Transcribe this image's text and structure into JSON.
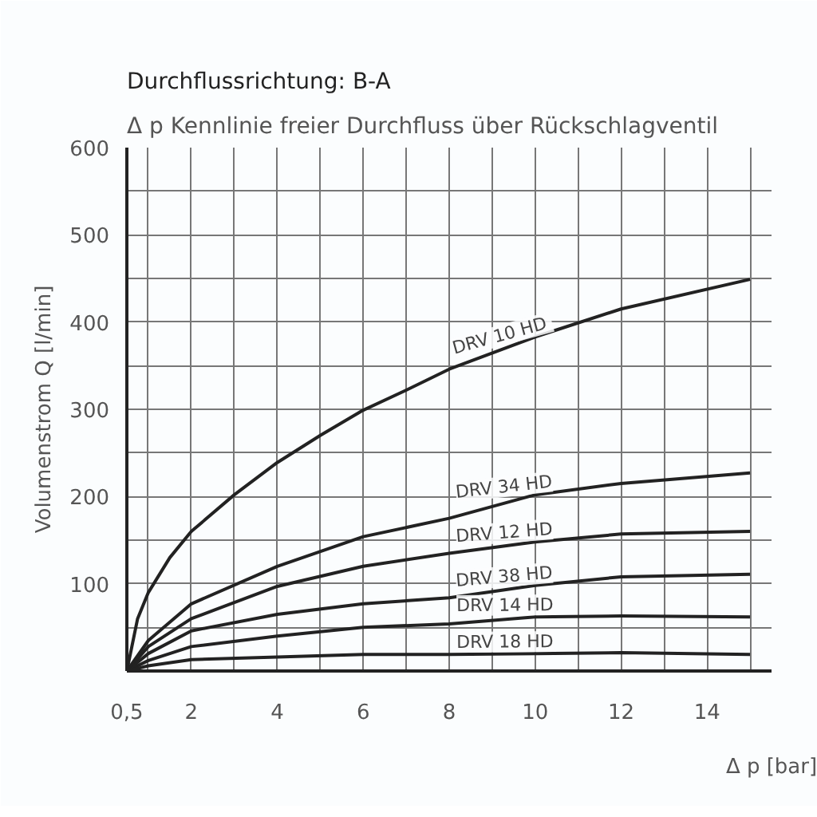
{
  "chart_data": {
    "type": "line",
    "title": "Durchflussrichtung: B-A",
    "subtitle": "Δ p Kennlinie freier Durchfluss über Rückschlagventil",
    "xlabel": "Δ p [bar]",
    "ylabel": "Volumenstrom Q [l/min]",
    "xlim": [
      0.5,
      15.5
    ],
    "ylim": [
      0,
      600
    ],
    "xticks": [
      {
        "value": 0.5,
        "label": "0,5"
      },
      {
        "value": 1,
        "label": null
      },
      2,
      {
        "value": 3,
        "label": null
      },
      4,
      {
        "value": 5,
        "label": null
      },
      6,
      {
        "value": 7,
        "label": null
      },
      8,
      {
        "value": 9,
        "label": null
      },
      10,
      {
        "value": 11,
        "label": null
      },
      12,
      {
        "value": 13,
        "label": null
      },
      14,
      {
        "value": 15,
        "label": null
      }
    ],
    "yticks": [
      {
        "value": 0,
        "label": null
      },
      {
        "value": 50,
        "label": null
      },
      100,
      {
        "value": 150,
        "label": null
      },
      200,
      {
        "value": 250,
        "label": null
      },
      300,
      {
        "value": 350,
        "label": null
      },
      400,
      {
        "value": 450,
        "label": null
      },
      500,
      {
        "value": 550,
        "label": null
      },
      600
    ],
    "grid": true,
    "legend": false,
    "marker": "none",
    "line_style": "solid",
    "series": [
      {
        "name": "DRV 10  HD",
        "color": "#222222",
        "x": [
          0.5,
          0.75,
          1,
          1.5,
          2,
          3,
          4,
          5,
          6,
          7,
          8,
          10,
          12,
          15
        ],
        "values": [
          0,
          60,
          90,
          130,
          160,
          202,
          239,
          270,
          299,
          322,
          346,
          383,
          415,
          449
        ]
      },
      {
        "name": "DRV 34 HD",
        "color": "#222222",
        "x": [
          0.5,
          1,
          2,
          4,
          6,
          8,
          10,
          12,
          15
        ],
        "values": [
          0,
          35,
          77,
          120,
          154,
          175,
          202,
          215,
          227
        ]
      },
      {
        "name": "DRV 12 HD",
        "color": "#222222",
        "x": [
          0.5,
          1,
          2,
          4,
          6,
          8,
          10,
          12,
          15
        ],
        "values": [
          0,
          28,
          60,
          97,
          120,
          135,
          148,
          157,
          160
        ]
      },
      {
        "name": "DRV 38 HD",
        "color": "#222222",
        "x": [
          0.5,
          1,
          2,
          4,
          6,
          8,
          10,
          12,
          15
        ],
        "values": [
          0,
          20,
          46,
          65,
          77,
          84,
          98,
          108,
          111
        ]
      },
      {
        "name": "DRV 14 HD",
        "color": "#222222",
        "x": [
          0.5,
          1,
          2,
          4,
          6,
          8,
          10,
          12,
          15
        ],
        "values": [
          0,
          12,
          28,
          40,
          50,
          54,
          62,
          63,
          62
        ]
      },
      {
        "name": "DRV 18 HD",
        "color": "#222222",
        "x": [
          0.5,
          1,
          2,
          4,
          6,
          8,
          10,
          12,
          15
        ],
        "values": [
          0,
          6,
          13,
          16,
          19,
          19,
          20,
          21,
          19
        ]
      }
    ]
  }
}
